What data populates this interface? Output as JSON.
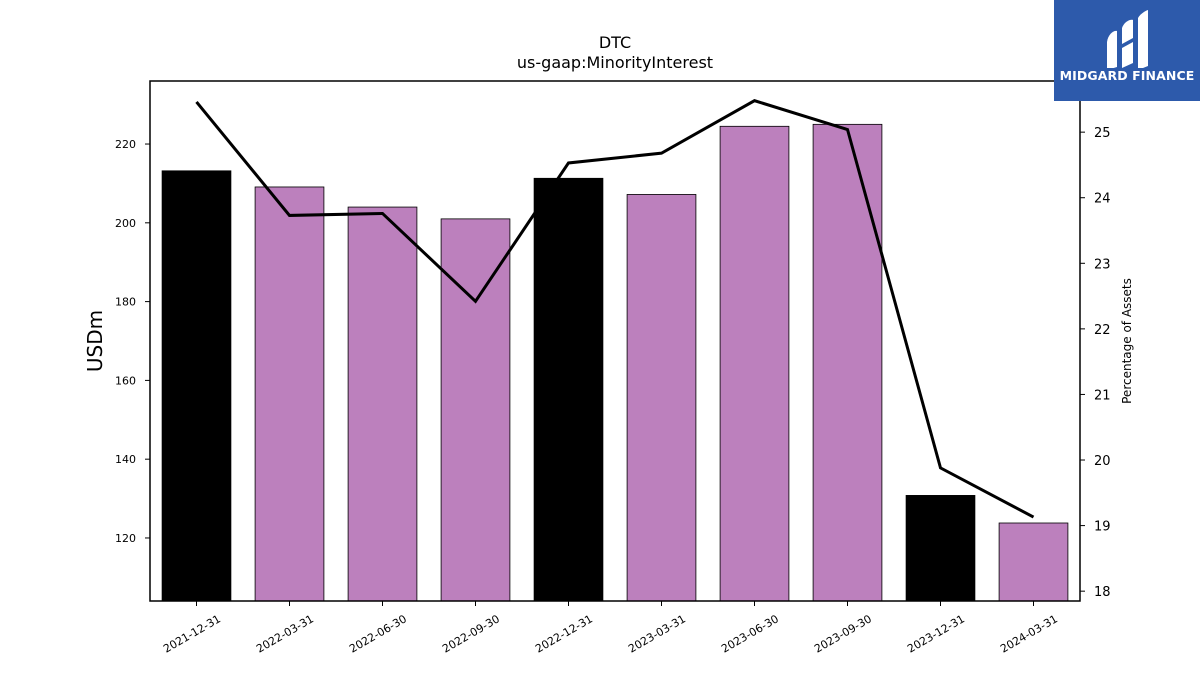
{
  "chart_data": {
    "type": "bar",
    "title": "DTC",
    "subtitle": "us-gaap:MinorityInterest",
    "ylabel": "USDm",
    "y2label": "Percentage of Assets",
    "ylim": [
      104,
      236
    ],
    "y2lim": [
      17.85,
      25.78
    ],
    "yticks": [
      120,
      140,
      160,
      180,
      200,
      220
    ],
    "y2ticks": [
      18,
      19,
      20,
      21,
      22,
      23,
      24,
      25
    ],
    "categories": [
      "2021-12-31",
      "2022-03-31",
      "2022-06-30",
      "2022-09-30",
      "2022-12-31",
      "2023-03-31",
      "2023-06-30",
      "2023-09-30",
      "2023-12-31",
      "2024-03-31"
    ],
    "series": [
      {
        "kind": "bar",
        "values": [
          213.2,
          209.1,
          204.0,
          201.0,
          211.3,
          207.2,
          224.5,
          225.0,
          130.8,
          123.8
        ],
        "colors": [
          "#000000",
          "#bc80bd",
          "#bc80bd",
          "#bc80bd",
          "#000000",
          "#bc80bd",
          "#bc80bd",
          "#bc80bd",
          "#000000",
          "#bc80bd"
        ]
      },
      {
        "kind": "line",
        "axis": "right",
        "values": [
          25.46,
          23.73,
          23.76,
          22.42,
          24.53,
          24.68,
          25.48,
          25.04,
          19.88,
          19.13
        ],
        "color": "#000000"
      }
    ],
    "grid": false,
    "legend": "none"
  },
  "logo": {
    "text": "MIDGARD FINANCE",
    "background": "#2d5aab",
    "icon": "midgard-logo-icon"
  }
}
